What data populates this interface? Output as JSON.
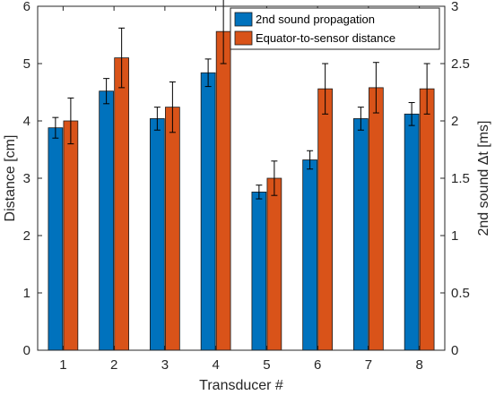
{
  "chart_data": {
    "type": "bar",
    "categories": [
      "1",
      "2",
      "3",
      "4",
      "5",
      "6",
      "7",
      "8"
    ],
    "xlabel": "Transducer #",
    "ylabel": "Distance [cm]",
    "y2label": "2nd sound  Δt [ms]",
    "ylim": [
      0,
      6
    ],
    "y2lim": [
      0,
      3
    ],
    "yticks": [
      "0",
      "1",
      "2",
      "3",
      "4",
      "5",
      "6"
    ],
    "y2ticks": [
      "0",
      "0.5",
      "1",
      "1.5",
      "2",
      "2.5",
      "3"
    ],
    "legend_position": "top-right",
    "series": [
      {
        "name": "2nd sound propagation",
        "color": "#0072BD",
        "values": [
          3.88,
          4.52,
          4.04,
          4.84,
          2.76,
          3.32,
          4.04,
          4.12
        ],
        "errors": [
          0.18,
          0.22,
          0.2,
          0.24,
          0.12,
          0.16,
          0.2,
          0.2
        ]
      },
      {
        "name": "Equator-to-sensor distance",
        "color": "#D95319",
        "values": [
          4.0,
          5.1,
          4.24,
          5.56,
          3.0,
          4.56,
          4.58,
          4.56
        ],
        "errors": [
          0.4,
          0.52,
          0.44,
          0.56,
          0.3,
          0.44,
          0.44,
          0.44
        ]
      }
    ]
  }
}
